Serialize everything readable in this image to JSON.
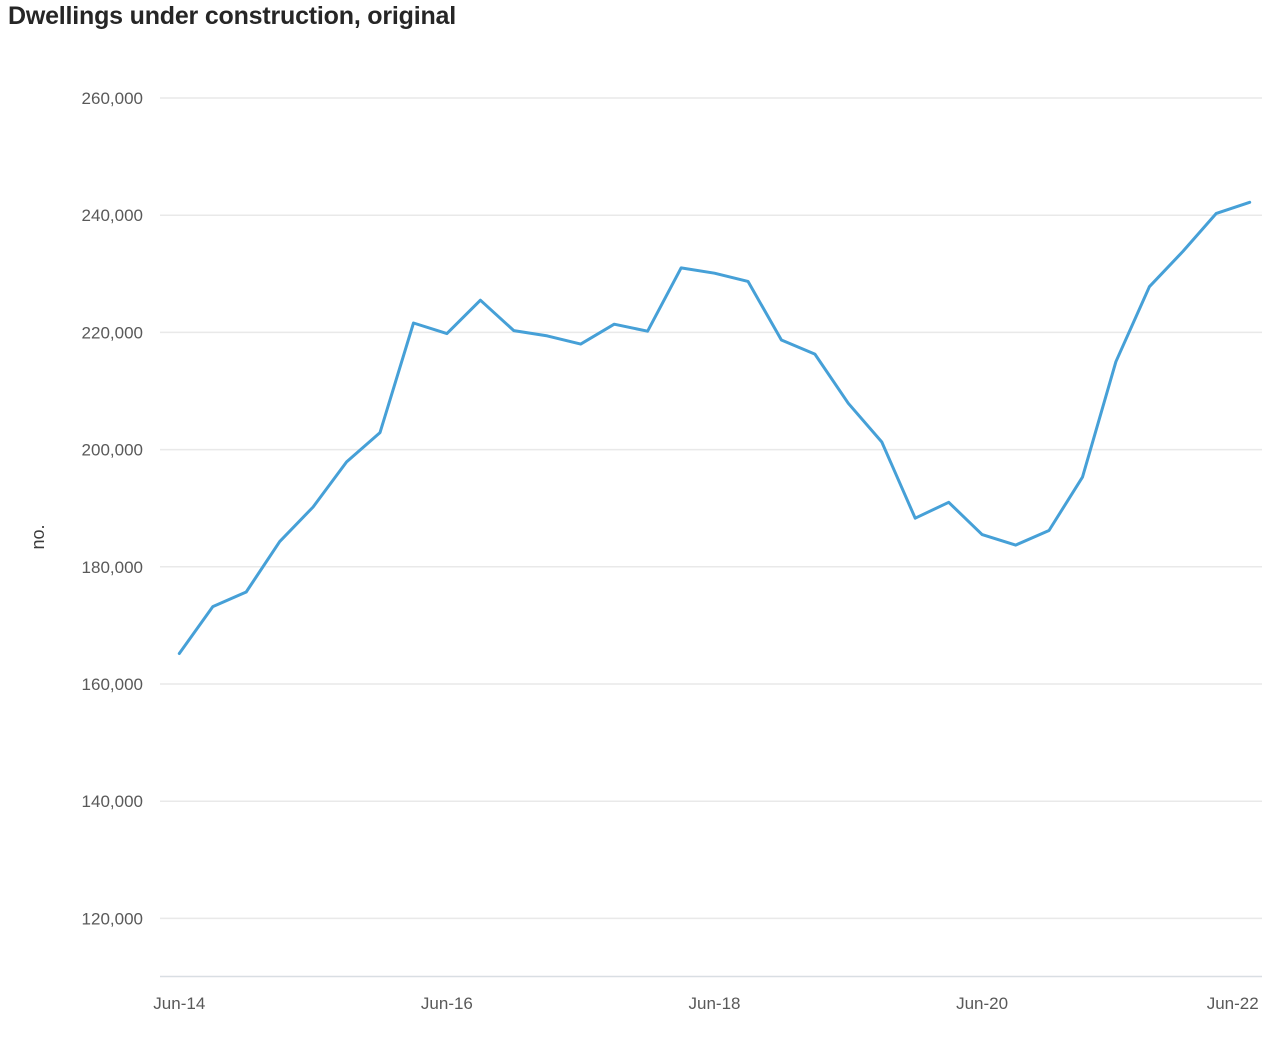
{
  "title": "Dwellings under construction, original",
  "chart_data": {
    "type": "line",
    "title": "Dwellings under construction, original",
    "xlabel": "",
    "ylabel": "no.",
    "legend_position": "none",
    "grid": "horizontal",
    "line_color": "#46a0d7",
    "grid_color": "#e9e9e9",
    "axis_line_color": "#d9dee3",
    "tick_text_color": "#595959",
    "title_color": "#262626",
    "x": [
      "Jun-14",
      "Sep-14",
      "Dec-14",
      "Mar-15",
      "Jun-15",
      "Sep-15",
      "Dec-15",
      "Mar-16",
      "Jun-16",
      "Sep-16",
      "Dec-16",
      "Mar-17",
      "Jun-17",
      "Sep-17",
      "Dec-17",
      "Mar-18",
      "Jun-18",
      "Sep-18",
      "Dec-18",
      "Mar-19",
      "Jun-19",
      "Sep-19",
      "Dec-19",
      "Mar-20",
      "Jun-20",
      "Sep-20",
      "Dec-20",
      "Mar-21",
      "Jun-21",
      "Sep-21",
      "Dec-21",
      "Mar-22",
      "Jun-22"
    ],
    "values": [
      165200,
      173200,
      175700,
      184300,
      190200,
      197900,
      202900,
      221600,
      219800,
      225500,
      220300,
      219400,
      218000,
      221400,
      220200,
      231000,
      230100,
      228700,
      218700,
      216300,
      207900,
      201300,
      188300,
      191000,
      185500,
      183700,
      186200,
      195300,
      215000,
      227800,
      233800,
      240300,
      242200
    ],
    "x_tick_labels": [
      "Jun-14",
      "Jun-16",
      "Jun-18",
      "Jun-20",
      "Jun-22"
    ],
    "y_ticks": [
      260000,
      240000,
      220000,
      200000,
      180000,
      160000,
      140000,
      120000
    ],
    "y_tick_labels": [
      "260,000",
      "240,000",
      "220,000",
      "200,000",
      "180,000",
      "160,000",
      "140,000",
      "120,000"
    ],
    "ylim": [
      110000,
      262000
    ]
  }
}
